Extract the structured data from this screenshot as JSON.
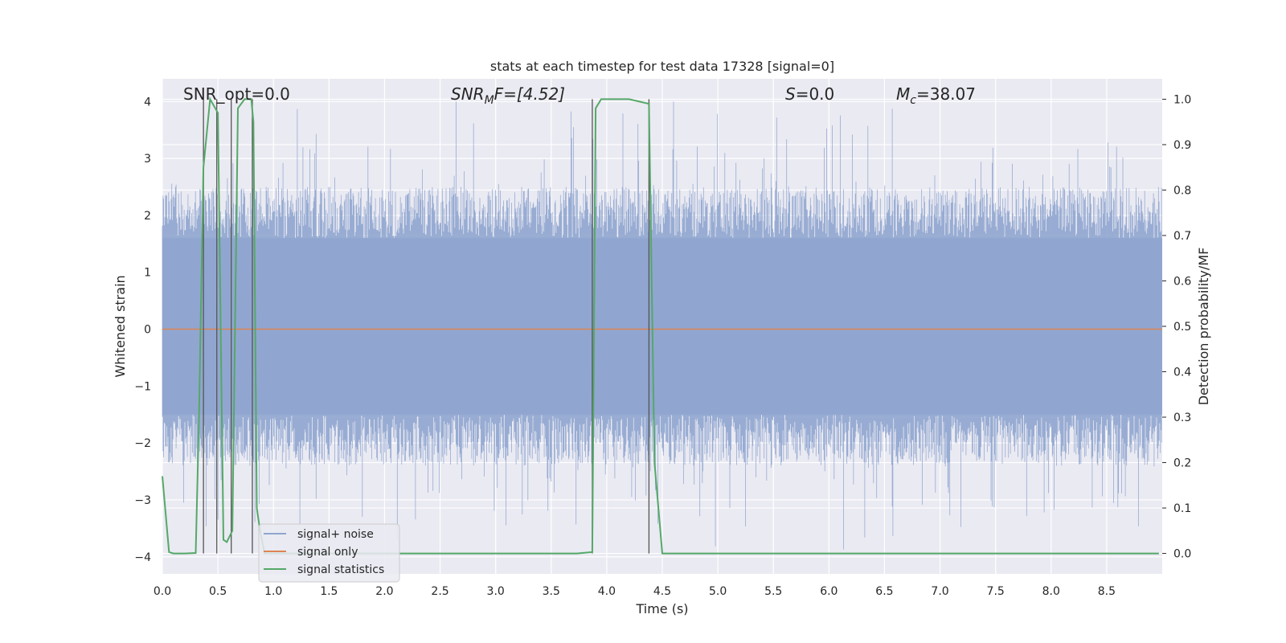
{
  "chart_data": {
    "type": "line",
    "title": "stats at each timestep for test data 17328 [signal=0]",
    "xlabel": "Time (s)",
    "ylabel": "Whitened strain",
    "ylabel_right": "Detection probability/MF",
    "xlim": [
      0.0,
      9.0
    ],
    "ylim": [
      -4.3,
      4.4
    ],
    "ylim_right": [
      -0.045,
      1.045
    ],
    "xticks": [
      "0.0",
      "0.5",
      "1.0",
      "1.5",
      "2.0",
      "2.5",
      "3.0",
      "3.5",
      "4.0",
      "4.5",
      "5.0",
      "5.5",
      "6.0",
      "6.5",
      "7.0",
      "7.5",
      "8.0",
      "8.5"
    ],
    "yticks": [
      "4",
      "3",
      "2",
      "1",
      "0",
      "−1",
      "−2",
      "−3",
      "−4"
    ],
    "yticks_right": [
      "1.0",
      "0.9",
      "0.8",
      "0.7",
      "0.6",
      "0.5",
      "0.4",
      "0.3",
      "0.2",
      "0.1",
      "0.0"
    ],
    "grid": true,
    "legend_position": "lower-left",
    "annotations": {
      "snr_opt": "SNR_opt=0.0",
      "snr_mf_base": "SNR",
      "snr_mf_sub": "M",
      "snr_mf_rest": "F=[4.52]",
      "s_label": "S",
      "s_value": "=0.0",
      "mc_base": "M",
      "mc_sub": "c",
      "mc_value": "=38.07"
    },
    "series": [
      {
        "name": "signal+ noise",
        "color": "#8fa5cf",
        "description_level": "noise band, typical amplitude about ±1.7, peaks about ±4"
      },
      {
        "name": "signal only",
        "color": "#dd8452",
        "values": "flat at 0"
      },
      {
        "name": "signal statistics",
        "color": "#55a868",
        "x": [
          0.0,
          0.06,
          0.1,
          0.2,
          0.3,
          0.33,
          0.37,
          0.43,
          0.5,
          0.55,
          0.58,
          0.63,
          0.68,
          0.74,
          0.8,
          0.82,
          0.85,
          0.88,
          0.92,
          1.0,
          2.0,
          3.0,
          3.73,
          3.83,
          3.87,
          3.9,
          3.95,
          4.0,
          4.2,
          4.38,
          4.43,
          4.5,
          5.0,
          6.0,
          7.0,
          8.0,
          8.97
        ],
        "y": [
          0.17,
          0.003,
          0.0,
          0.0,
          0.001,
          0.3,
          0.85,
          1.0,
          0.97,
          0.03,
          0.025,
          0.05,
          0.98,
          1.0,
          1.0,
          0.95,
          0.1,
          0.05,
          0.0,
          0.0,
          0.0,
          0.0,
          0.0,
          0.002,
          0.003,
          0.98,
          1.0,
          1.0,
          1.0,
          0.99,
          0.2,
          0.0,
          0.0,
          0.0,
          0.0,
          0.0,
          0.0
        ]
      }
    ],
    "vlines_x": [
      0.37,
      0.49,
      0.62,
      0.81,
      3.87,
      4.38
    ]
  }
}
